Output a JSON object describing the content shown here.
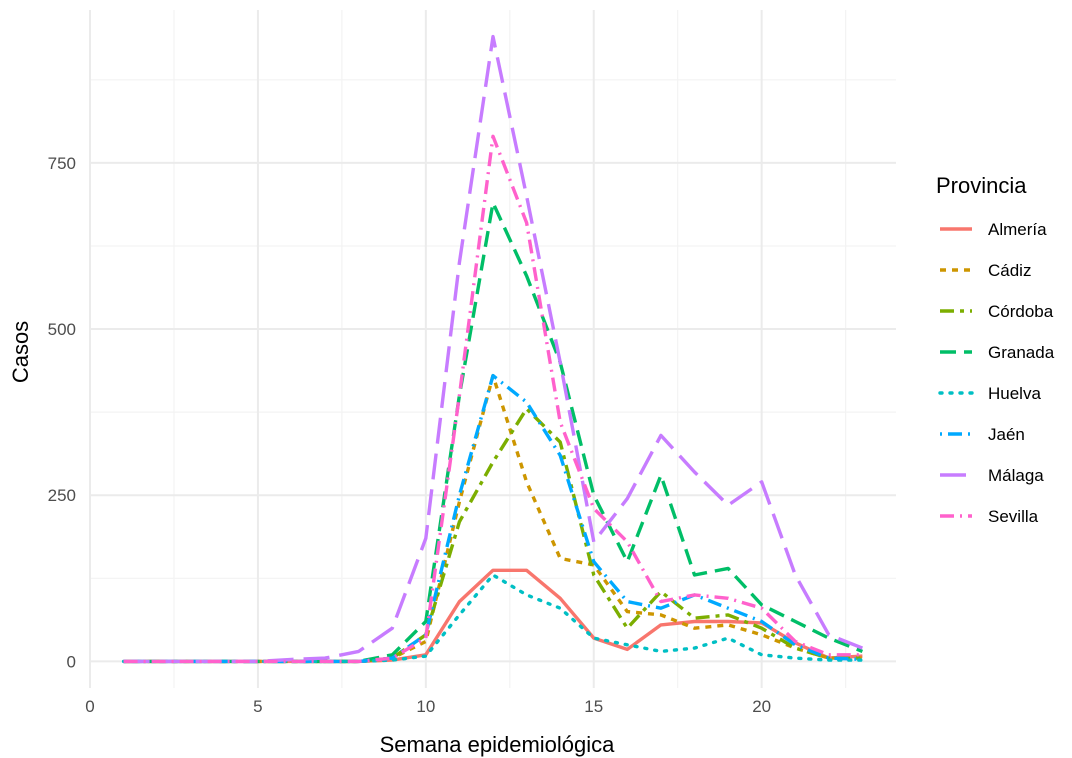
{
  "chart_data": {
    "type": "line",
    "xlabel": "Semana epidemiológica",
    "ylabel": "Casos",
    "xlim": [
      0,
      24
    ],
    "ylim": [
      -40,
      980
    ],
    "xticks": [
      0,
      5,
      10,
      15,
      20
    ],
    "yticks": [
      0,
      250,
      500,
      750
    ],
    "grid": true,
    "legend": {
      "title": "Provincia",
      "position": "right"
    },
    "x": [
      1,
      2,
      3,
      4,
      5,
      6,
      7,
      8,
      9,
      10,
      11,
      12,
      13,
      14,
      15,
      16,
      17,
      18,
      19,
      20,
      21,
      22,
      23
    ],
    "series": [
      {
        "name": "Almería",
        "color": "#F8766D",
        "dash": "solid",
        "values": [
          0,
          0,
          0,
          0,
          0,
          0,
          0,
          0,
          2,
          10,
          90,
          137,
          137,
          95,
          35,
          18,
          55,
          60,
          60,
          58,
          28,
          5,
          8
        ]
      },
      {
        "name": "Cádiz",
        "color": "#CD9600",
        "dash": "short",
        "values": [
          0,
          0,
          0,
          0,
          0,
          0,
          0,
          0,
          5,
          30,
          240,
          430,
          270,
          155,
          145,
          75,
          70,
          50,
          55,
          40,
          20,
          5,
          5
        ]
      },
      {
        "name": "Córdoba",
        "color": "#7CAE00",
        "dash": "longshort",
        "values": [
          0,
          0,
          0,
          0,
          0,
          0,
          0,
          0,
          5,
          40,
          210,
          300,
          380,
          330,
          130,
          50,
          105,
          65,
          70,
          50,
          20,
          5,
          5
        ]
      },
      {
        "name": "Granada",
        "color": "#00BE67",
        "dash": "long",
        "values": [
          0,
          0,
          0,
          0,
          0,
          0,
          0,
          0,
          10,
          60,
          400,
          690,
          580,
          450,
          250,
          150,
          280,
          130,
          140,
          85,
          60,
          35,
          15
        ]
      },
      {
        "name": "Huelva",
        "color": "#00BFC4",
        "dash": "dotted",
        "values": [
          0,
          0,
          0,
          0,
          0,
          0,
          0,
          0,
          2,
          8,
          70,
          130,
          100,
          80,
          35,
          25,
          15,
          20,
          35,
          10,
          5,
          2,
          2
        ]
      },
      {
        "name": "Jaén",
        "color": "#00A9FF",
        "dash": "dotlong",
        "values": [
          0,
          0,
          0,
          0,
          0,
          0,
          0,
          0,
          5,
          40,
          250,
          430,
          390,
          310,
          150,
          90,
          80,
          100,
          80,
          60,
          25,
          5,
          3
        ]
      },
      {
        "name": "Málaga",
        "color": "#C77CFF",
        "dash": "verylong",
        "values": [
          0,
          0,
          0,
          0,
          0,
          3,
          5,
          15,
          50,
          185,
          600,
          940,
          700,
          450,
          180,
          245,
          340,
          285,
          235,
          270,
          130,
          40,
          20
        ]
      },
      {
        "name": "Sevilla",
        "color": "#FF61CC",
        "dash": "dashdot",
        "values": [
          0,
          0,
          0,
          0,
          0,
          0,
          0,
          0,
          5,
          35,
          400,
          790,
          660,
          360,
          230,
          180,
          90,
          100,
          95,
          80,
          30,
          10,
          10
        ]
      }
    ]
  }
}
